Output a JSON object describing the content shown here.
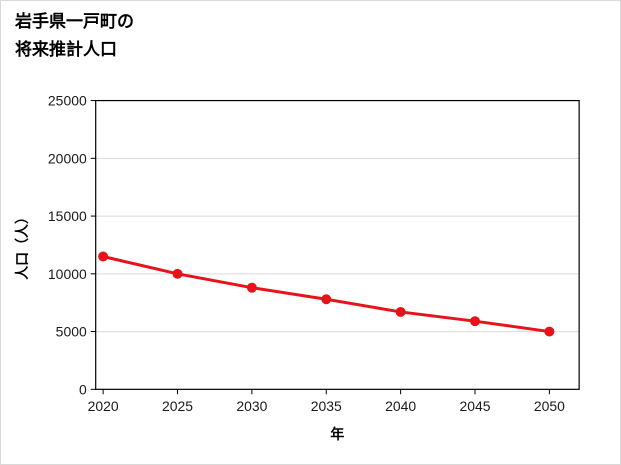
{
  "title": {
    "line1": "岩手県一戸町の",
    "line2": "将来推計人口"
  },
  "chart_data": {
    "type": "line",
    "title": "岩手県一戸町の将来推計人口",
    "xlabel": "年",
    "ylabel": "人口（人）",
    "x": [
      2020,
      2025,
      2030,
      2035,
      2040,
      2045,
      2050
    ],
    "series": [
      {
        "name": "将来推計人口",
        "values": [
          11500,
          10000,
          8800,
          7800,
          6700,
          5900,
          5000
        ]
      }
    ],
    "x_ticks": [
      2020,
      2025,
      2030,
      2035,
      2040,
      2045,
      2050
    ],
    "y_ticks": [
      0,
      5000,
      10000,
      15000,
      20000,
      25000
    ],
    "xlim": [
      2019.5,
      2052
    ],
    "ylim": [
      0,
      25000
    ],
    "grid": "horizontal",
    "legend": "none",
    "markers": true,
    "colors": {
      "line": "#e8131a",
      "marker": "#e8131a",
      "grid": "#d9d9d9",
      "axis": "#000000",
      "text": "#1a1a1a"
    }
  }
}
